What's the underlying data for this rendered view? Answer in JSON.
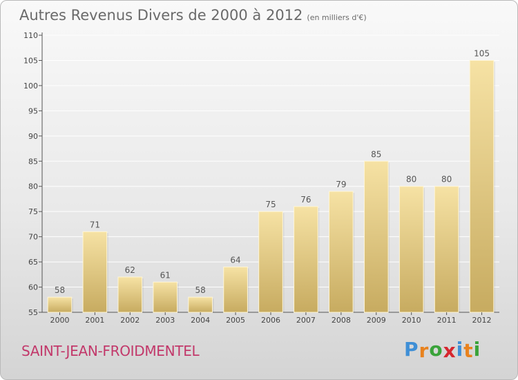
{
  "title": "Autres Revenus Divers de 2000 à 2012",
  "subtitle": "(en milliers d'€)",
  "city": "SAINT-JEAN-FROIDMENTEL",
  "logo": {
    "letters": [
      "P",
      "r",
      "o",
      "x",
      "i",
      "t",
      "i"
    ],
    "colors": [
      "#3f8fd6",
      "#e8821e",
      "#3aa33a",
      "#d6262e",
      "#3f8fd6",
      "#e8821e",
      "#3aa33a"
    ]
  },
  "colors": {
    "bar_light": "#f6e2a4",
    "bar_dark": "#c7ab60",
    "axis": "#555555",
    "grid": "#ffffff"
  },
  "chart_data": {
    "type": "bar",
    "title": "Autres Revenus Divers de 2000 à 2012",
    "xlabel": "",
    "ylabel": "",
    "ylim": [
      55,
      110
    ],
    "yticks": [
      55,
      60,
      65,
      70,
      75,
      80,
      85,
      90,
      95,
      100,
      105,
      110
    ],
    "grid": true,
    "categories": [
      "2000",
      "2001",
      "2002",
      "2003",
      "2004",
      "2005",
      "2006",
      "2007",
      "2008",
      "2009",
      "2010",
      "2011",
      "2012"
    ],
    "values": [
      58,
      71,
      62,
      61,
      58,
      64,
      75,
      76,
      79,
      85,
      80,
      80,
      105
    ]
  }
}
